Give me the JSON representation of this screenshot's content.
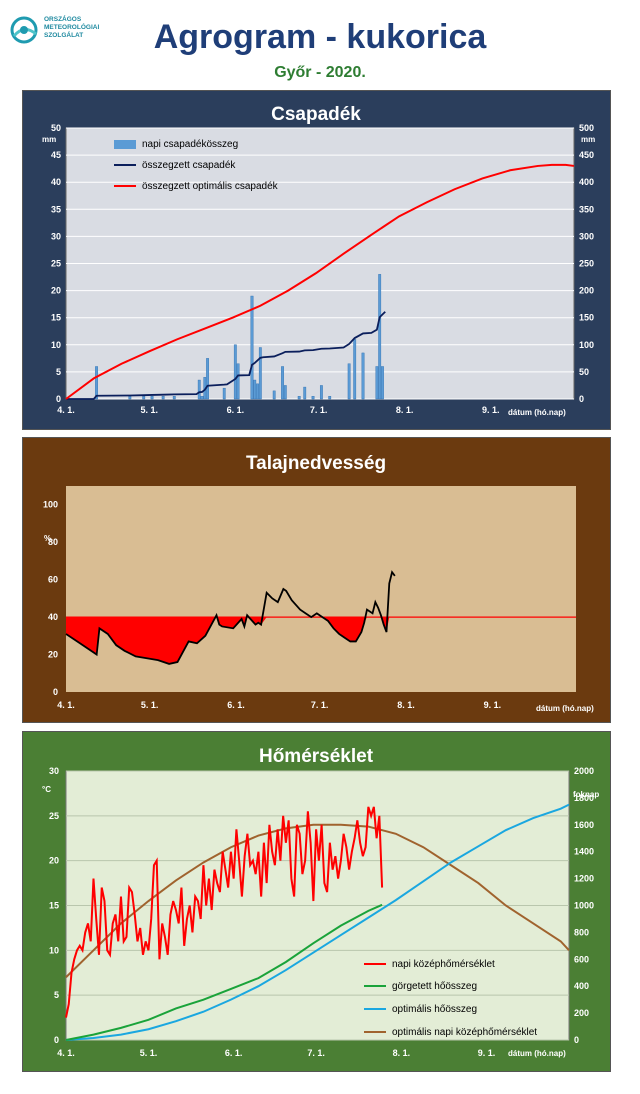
{
  "header": {
    "logo_lines": [
      "ORSZÁGOS",
      "METEOROLÓGIAI",
      "SZOLGÁLAT"
    ],
    "title": "Agrogram - kukorica",
    "subtitle": "Győr - 2020."
  },
  "colors": {
    "precip_panel_bg": "#2b3e5c",
    "precip_plot_bg": "#d9dce3",
    "soil_panel_bg": "#6b3a0f",
    "soil_plot_bg": "#d9bd93",
    "temp_panel_bg": "#4b7f34",
    "temp_plot_bg": "#e3edd6"
  },
  "x_axis": {
    "labels": [
      "4. 1.",
      "5. 1.",
      "6. 1.",
      "7. 1.",
      "8. 1.",
      "9. 1."
    ],
    "label": "dátum (hó.nap)"
  },
  "chart_data": [
    {
      "type": "bar+line",
      "title": "Csapadék",
      "ylabel_left": "mm",
      "ylabel_right": "mm",
      "ylim_left": [
        0,
        50
      ],
      "ylim_right": [
        0,
        500
      ],
      "yticks_left": [
        "0",
        "5",
        "10",
        "15",
        "20",
        "25",
        "30",
        "35",
        "40",
        "45",
        "50"
      ],
      "yticks_right": [
        "0",
        "50",
        "100",
        "150",
        "200",
        "250",
        "300",
        "350",
        "400",
        "450",
        "500"
      ],
      "xlim_days": [
        0,
        183
      ],
      "grid": true,
      "legend": "top-left",
      "series": [
        {
          "name": "napi csapadékösszeg",
          "kind": "bar",
          "color": "#5b9bd5",
          "axis": "left",
          "x": [
            11,
            23,
            28,
            31,
            35,
            39,
            48,
            49,
            50,
            51,
            57,
            61,
            62,
            67,
            68,
            69,
            70,
            75,
            78,
            79,
            84,
            86,
            89,
            92,
            95,
            102,
            104,
            107,
            112,
            113,
            114
          ],
          "y": [
            6.0,
            0.5,
            0.5,
            0.5,
            0.5,
            0.5,
            3.5,
            0.5,
            4.0,
            7.5,
            2.0,
            10.0,
            6.5,
            19.0,
            3.5,
            2.8,
            9.5,
            1.5,
            6.0,
            2.5,
            0.5,
            2.2,
            0.5,
            2.5,
            0.5,
            6.5,
            11.0,
            8.5,
            6.0,
            23.0,
            6.0
          ]
        },
        {
          "name": "összegzett csapadék",
          "kind": "line",
          "color": "#0b1f5c",
          "axis": "right",
          "x": [
            0,
            10,
            11,
            23,
            28,
            31,
            35,
            39,
            47,
            48,
            49,
            50,
            51,
            57,
            58,
            61,
            62,
            66,
            67,
            68,
            70,
            71,
            75,
            78,
            79,
            84,
            86,
            89,
            92,
            95,
            100,
            102,
            104,
            107,
            110,
            112,
            113,
            115
          ],
          "y": [
            0,
            0,
            6,
            6.5,
            7,
            7.5,
            8,
            8.5,
            9,
            12.5,
            13,
            17,
            24.5,
            26.5,
            27,
            37,
            43.5,
            44,
            63,
            66.5,
            76,
            77,
            78.5,
            84.5,
            87,
            87.5,
            89.7,
            90.2,
            92.7,
            93.2,
            95,
            101.5,
            112.5,
            121,
            122,
            128,
            151,
            161
          ]
        },
        {
          "name": "összegzett optimális csapadék",
          "kind": "line",
          "color": "#ff0000",
          "axis": "right",
          "x": [
            0,
            10,
            20,
            30,
            40,
            50,
            60,
            70,
            80,
            90,
            100,
            110,
            120,
            130,
            140,
            150,
            160,
            170,
            175,
            180,
            183
          ],
          "y": [
            0,
            38,
            65,
            88,
            110,
            130,
            150,
            172,
            200,
            232,
            268,
            303,
            337,
            363,
            387,
            407,
            422,
            430,
            432,
            432,
            430
          ]
        }
      ]
    },
    {
      "type": "line",
      "title": "Talajnedvesség",
      "ylabel": "%",
      "ylim": [
        0,
        110
      ],
      "yticks": [
        "0",
        "20",
        "40",
        "60",
        "80",
        "100"
      ],
      "xlim_days": [
        0,
        183
      ],
      "threshold": 40,
      "threshold_color": "#ff0000",
      "series": [
        {
          "name": "talajnedvesség",
          "kind": "line",
          "color": "#000000",
          "x": [
            0,
            5,
            11,
            12,
            15,
            18,
            21,
            25,
            29,
            33,
            37,
            40,
            44,
            47,
            50,
            54,
            55,
            56,
            60,
            63,
            64,
            65,
            68,
            69,
            70,
            72,
            74,
            76,
            78,
            79,
            81,
            84,
            86,
            88,
            90,
            92,
            94,
            96,
            98,
            100,
            102,
            104,
            106,
            107,
            108,
            110,
            111,
            112,
            113,
            114,
            115
          ],
          "y": [
            31,
            26,
            20,
            34,
            31,
            25,
            22,
            19,
            18,
            17,
            15,
            16,
            27,
            26,
            30,
            41,
            36,
            35,
            34,
            39,
            35,
            41,
            36,
            37,
            36,
            53,
            50,
            48,
            55,
            54,
            49,
            44,
            42,
            40,
            42,
            40,
            38,
            34,
            31,
            29,
            27,
            27,
            32,
            37,
            44,
            42,
            48,
            45,
            41,
            36,
            32
          ]
        }
      ],
      "tail": {
        "x": [
          115,
          116,
          117,
          118
        ],
        "y": [
          32,
          58,
          64,
          62
        ]
      }
    },
    {
      "type": "line",
      "title": "Hőmérséklet",
      "ylabel_left": "°C",
      "ylabel_right": "foknap",
      "ylim_left": [
        0,
        30
      ],
      "ylim_right": [
        0,
        2000
      ],
      "yticks_left": [
        "0",
        "5",
        "10",
        "15",
        "20",
        "25",
        "30"
      ],
      "yticks_right": [
        "0",
        "200",
        "400",
        "600",
        "800",
        "1000",
        "1200",
        "1400",
        "1600",
        "1800",
        "2000"
      ],
      "xlim_days": [
        0,
        183
      ],
      "grid": true,
      "legend": "bottom-right",
      "series": [
        {
          "name": "napi középhőmérséklet",
          "kind": "line",
          "color": "#ff0000",
          "axis": "left",
          "x": [
            0,
            1,
            2,
            3,
            4,
            5,
            6,
            7,
            8,
            9,
            10,
            11,
            12,
            13,
            14,
            15,
            16,
            17,
            18,
            19,
            20,
            21,
            22,
            23,
            24,
            25,
            26,
            27,
            28,
            29,
            30,
            31,
            32,
            33,
            34,
            35,
            36,
            37,
            38,
            39,
            40,
            41,
            42,
            43,
            44,
            45,
            46,
            47,
            48,
            49,
            50,
            51,
            52,
            53,
            54,
            55,
            56,
            57,
            58,
            59,
            60,
            61,
            62,
            63,
            64,
            65,
            66,
            67,
            68,
            69,
            70,
            71,
            72,
            73,
            74,
            75,
            76,
            77,
            78,
            79,
            80,
            81,
            82,
            83,
            84,
            85,
            86,
            87,
            88,
            89,
            90,
            91,
            92,
            93,
            94,
            95,
            96,
            97,
            98,
            99,
            100,
            101,
            102,
            103,
            104,
            105,
            106,
            107,
            108,
            109,
            110,
            111,
            112,
            113,
            114,
            115
          ],
          "y": [
            2.5,
            4.0,
            7.5,
            9.0,
            10.0,
            10.5,
            10.0,
            12.0,
            13.0,
            11.0,
            18.0,
            13.5,
            9.5,
            17.0,
            15.5,
            10.0,
            9.5,
            13.0,
            14.0,
            11.0,
            16.0,
            11.0,
            11.5,
            17.0,
            16.5,
            14.0,
            11.0,
            12.5,
            9.5,
            11.0,
            10.0,
            13.5,
            19.5,
            20.0,
            9.0,
            13.0,
            11.5,
            9.5,
            14.0,
            15.5,
            14.5,
            13.0,
            17.0,
            10.5,
            13.5,
            15.0,
            12.0,
            16.0,
            15.5,
            13.5,
            19.5,
            15.0,
            18.0,
            14.5,
            19.0,
            17.5,
            16.5,
            21.0,
            19.0,
            17.0,
            21.0,
            18.0,
            23.5,
            20.0,
            16.0,
            20.5,
            23.0,
            19.5,
            20.0,
            18.5,
            21.0,
            16.0,
            22.0,
            17.5,
            24.0,
            21.0,
            19.5,
            23.5,
            20.0,
            25.0,
            22.0,
            24.5,
            18.0,
            16.0,
            24.0,
            23.0,
            18.5,
            20.0,
            25.5,
            22.0,
            15.5,
            23.5,
            20.0,
            24.0,
            17.5,
            16.5,
            22.0,
            19.0,
            20.5,
            18.0,
            20.0,
            23.0,
            21.5,
            19.0,
            21.0,
            22.5,
            24.5,
            22.0,
            20.5,
            21.5,
            26.0,
            25.0,
            26.0,
            22.5,
            25.0,
            17.0
          ]
        },
        {
          "name": "görgetett hőösszeg",
          "kind": "line",
          "color": "#1aa33a",
          "axis": "right",
          "x": [
            0,
            10,
            20,
            30,
            40,
            50,
            60,
            70,
            80,
            90,
            100,
            110,
            115
          ],
          "y": [
            0,
            40,
            90,
            150,
            235,
            300,
            380,
            460,
            580,
            720,
            850,
            960,
            1005
          ]
        },
        {
          "name": "optimális hőösszeg",
          "kind": "line",
          "color": "#1aa7e0",
          "axis": "right",
          "x": [
            0,
            10,
            20,
            30,
            40,
            50,
            60,
            70,
            80,
            90,
            100,
            110,
            120,
            130,
            140,
            150,
            160,
            170,
            180,
            183
          ],
          "y": [
            0,
            15,
            40,
            80,
            140,
            210,
            300,
            400,
            520,
            650,
            780,
            910,
            1040,
            1180,
            1320,
            1440,
            1560,
            1650,
            1720,
            1750
          ]
        },
        {
          "name": "optimális napi középhőmérséklet",
          "kind": "line",
          "color": "#a0632e",
          "axis": "left",
          "x": [
            0,
            10,
            20,
            30,
            40,
            50,
            60,
            70,
            80,
            90,
            100,
            110,
            120,
            130,
            140,
            150,
            160,
            170,
            180,
            183
          ],
          "y": [
            7.0,
            10.0,
            13.0,
            15.5,
            17.8,
            19.8,
            21.5,
            22.8,
            23.6,
            24.0,
            24.0,
            23.8,
            23.0,
            21.5,
            19.5,
            17.5,
            15.0,
            13.0,
            11.0,
            10.0
          ]
        }
      ]
    }
  ]
}
